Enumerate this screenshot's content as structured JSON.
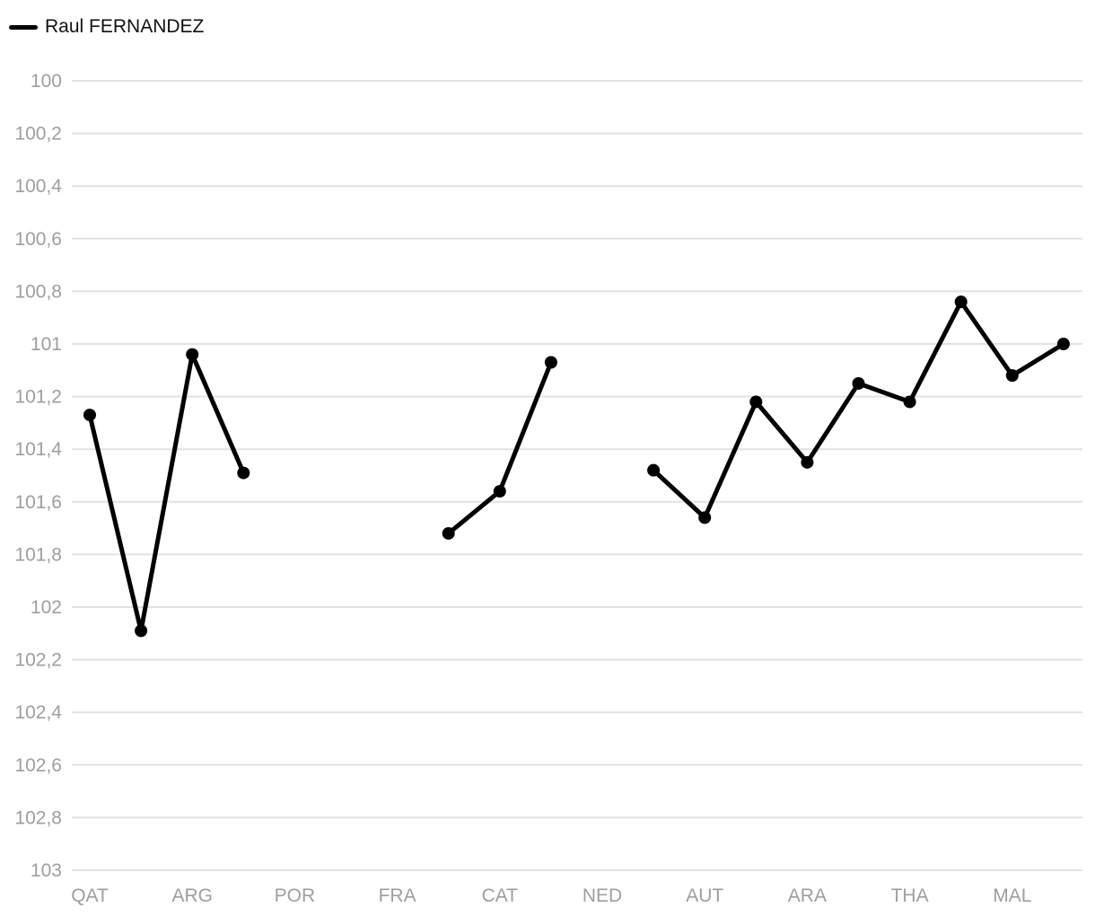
{
  "chart_data": {
    "type": "line",
    "y_reversed": true,
    "ylim": [
      100,
      103
    ],
    "yticks": [
      {
        "value": 100,
        "label": "100"
      },
      {
        "value": 100.2,
        "label": "100,2"
      },
      {
        "value": 100.4,
        "label": "100,4"
      },
      {
        "value": 100.6,
        "label": "100,6"
      },
      {
        "value": 100.8,
        "label": "100,8"
      },
      {
        "value": 101,
        "label": "101"
      },
      {
        "value": 101.2,
        "label": "101,2"
      },
      {
        "value": 101.4,
        "label": "101,4"
      },
      {
        "value": 101.6,
        "label": "101,6"
      },
      {
        "value": 101.8,
        "label": "101,8"
      },
      {
        "value": 102,
        "label": "102"
      },
      {
        "value": 102.2,
        "label": "102,2"
      },
      {
        "value": 102.4,
        "label": "102,4"
      },
      {
        "value": 102.6,
        "label": "102,6"
      },
      {
        "value": 102.8,
        "label": "102,8"
      },
      {
        "value": 103,
        "label": "103"
      }
    ],
    "categories": [
      "QAT",
      "",
      "ARG",
      "",
      "POR",
      "",
      "FRA",
      "",
      "CAT",
      "",
      "NED",
      "",
      "AUT",
      "",
      "ARA",
      "",
      "THA",
      "",
      "MAL",
      ""
    ],
    "xtick_labels": [
      "QAT",
      "ARG",
      "POR",
      "FRA",
      "CAT",
      "NED",
      "AUT",
      "ARA",
      "THA",
      "MAL"
    ],
    "grid": true,
    "legend_position": "top-left",
    "series": [
      {
        "name": "Raul FERNANDEZ",
        "color": "#000000",
        "values": [
          101.27,
          102.09,
          101.04,
          101.49,
          null,
          null,
          null,
          101.72,
          101.56,
          101.07,
          null,
          101.48,
          101.66,
          101.22,
          101.45,
          101.15,
          101.22,
          100.84,
          101.12,
          101.0
        ]
      }
    ]
  }
}
